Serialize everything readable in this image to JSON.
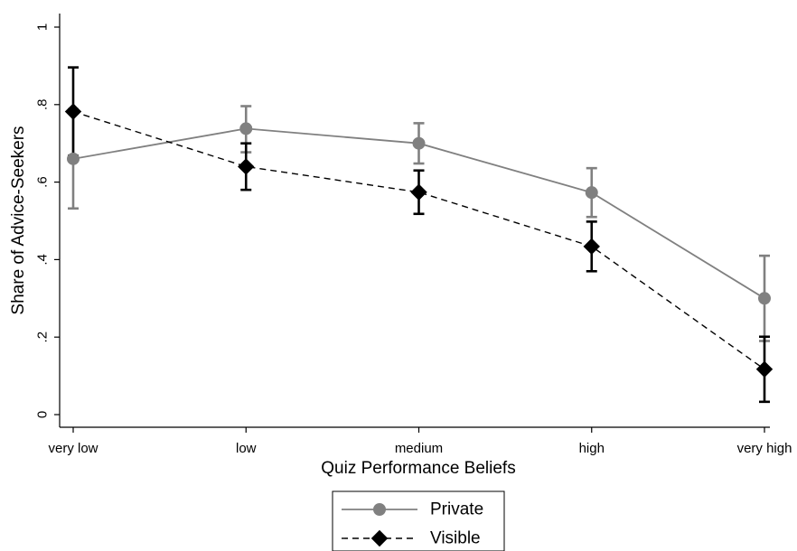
{
  "chart_data": {
    "type": "line",
    "xlabel": "Quiz Performance Beliefs",
    "ylabel": "Share of Advice-Seekers",
    "categories": [
      "very low",
      "low",
      "medium",
      "high",
      "very high"
    ],
    "yticks": [
      {
        "value": 0,
        "label": "0"
      },
      {
        "value": 0.2,
        "label": ".2"
      },
      {
        "value": 0.4,
        "label": ".4"
      },
      {
        "value": 0.6,
        "label": ".6"
      },
      {
        "value": 0.8,
        "label": ".8"
      },
      {
        "value": 1,
        "label": "1"
      }
    ],
    "ylim": [
      0,
      1
    ],
    "grid": false,
    "legend_position": "bottom-center",
    "series": [
      {
        "name": "Private",
        "color": "#808080",
        "marker": "circle",
        "line_style": "solid",
        "values": [
          0.66,
          0.738,
          0.7,
          0.573,
          0.3
        ],
        "ci_low": [
          0.532,
          0.677,
          0.648,
          0.51,
          0.19
        ],
        "ci_high": [
          0.788,
          0.796,
          0.752,
          0.636,
          0.41
        ]
      },
      {
        "name": "Visible",
        "color": "#000000",
        "marker": "diamond",
        "line_style": "dashed",
        "values": [
          0.782,
          0.64,
          0.574,
          0.434,
          0.117
        ],
        "ci_low": [
          0.668,
          0.58,
          0.518,
          0.37,
          0.033
        ],
        "ci_high": [
          0.896,
          0.7,
          0.63,
          0.498,
          0.201
        ]
      }
    ]
  }
}
